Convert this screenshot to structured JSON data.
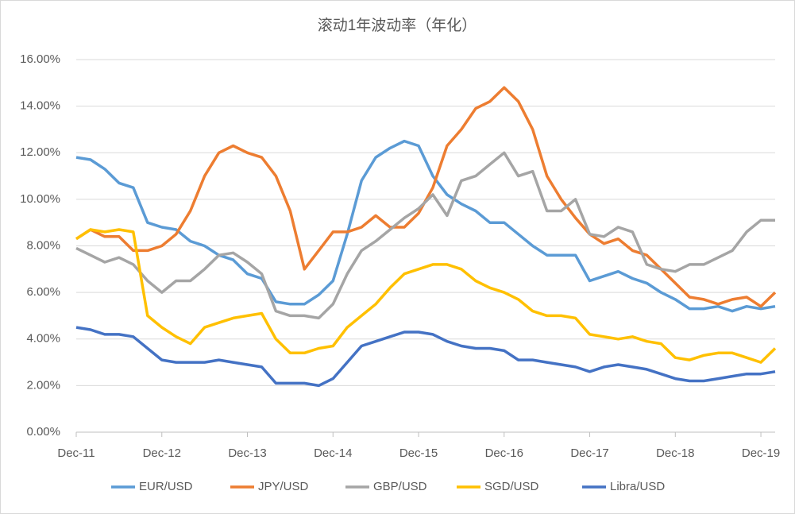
{
  "chart_data": {
    "type": "line",
    "title": "滚动1年波动率（年化）",
    "categories": [
      "Dec-11",
      null,
      null,
      null,
      null,
      null,
      "Dec-12",
      null,
      null,
      null,
      null,
      null,
      "Dec-13",
      null,
      null,
      null,
      null,
      null,
      "Dec-14",
      null,
      null,
      null,
      null,
      null,
      "Dec-15",
      null,
      null,
      null,
      null,
      null,
      "Dec-16",
      null,
      null,
      null,
      null,
      null,
      "Dec-17",
      null,
      null,
      null,
      null,
      null,
      "Dec-18",
      null,
      null,
      null,
      null,
      null,
      "Dec-19",
      null
    ],
    "ylim": [
      0,
      16
    ],
    "yticks": [
      {
        "value": 0,
        "label": "0.00%"
      },
      {
        "value": 2,
        "label": "2.00%"
      },
      {
        "value": 4,
        "label": "4.00%"
      },
      {
        "value": 6,
        "label": "6.00%"
      },
      {
        "value": 8,
        "label": "8.00%"
      },
      {
        "value": 10,
        "label": "10.00%"
      },
      {
        "value": 12,
        "label": "12.00%"
      },
      {
        "value": 14,
        "label": "14.00%"
      },
      {
        "value": 16,
        "label": "16.00%"
      }
    ],
    "grid": true,
    "legend": "bottom",
    "series": [
      {
        "name": "EUR/USD",
        "color": "#5b9bd5",
        "values": [
          11.8,
          11.7,
          11.3,
          10.7,
          10.5,
          9.0,
          8.8,
          8.7,
          8.2,
          8.0,
          7.6,
          7.4,
          6.8,
          6.6,
          5.6,
          5.5,
          5.5,
          5.9,
          6.5,
          8.5,
          10.8,
          11.8,
          12.2,
          12.5,
          12.3,
          11.0,
          10.2,
          9.8,
          9.5,
          9.0,
          9.0,
          8.5,
          8.0,
          7.6,
          7.6,
          7.6,
          6.5,
          6.7,
          6.9,
          6.6,
          6.4,
          6.0,
          5.7,
          5.3,
          5.3,
          5.4,
          5.2,
          5.4,
          5.3,
          5.4
        ]
      },
      {
        "name": "JPY/USD",
        "color": "#ed7d31",
        "values": [
          8.3,
          8.7,
          8.4,
          8.4,
          7.8,
          7.8,
          8.0,
          8.5,
          9.5,
          11.0,
          12.0,
          12.3,
          12.0,
          11.8,
          11.0,
          9.5,
          7.0,
          7.8,
          8.6,
          8.6,
          8.8,
          9.3,
          8.8,
          8.8,
          9.4,
          10.5,
          12.3,
          13.0,
          13.9,
          14.2,
          14.8,
          14.2,
          13.0,
          11.0,
          10.0,
          9.2,
          8.5,
          8.1,
          8.3,
          7.8,
          7.6,
          7.0,
          6.4,
          5.8,
          5.7,
          5.5,
          5.7,
          5.8,
          5.4,
          6.0
        ]
      },
      {
        "name": "GBP/USD",
        "color": "#a5a5a5",
        "values": [
          7.9,
          7.6,
          7.3,
          7.5,
          7.2,
          6.5,
          6.0,
          6.5,
          6.5,
          7.0,
          7.6,
          7.7,
          7.3,
          6.8,
          5.2,
          5.0,
          5.0,
          4.9,
          5.5,
          6.8,
          7.8,
          8.2,
          8.7,
          9.2,
          9.6,
          10.2,
          9.3,
          10.8,
          11.0,
          11.5,
          12.0,
          11.0,
          11.2,
          9.5,
          9.5,
          10.0,
          8.5,
          8.4,
          8.8,
          8.6,
          7.2,
          7.0,
          6.9,
          7.2,
          7.2,
          7.5,
          7.8,
          8.6,
          9.1,
          9.1
        ]
      },
      {
        "name": "SGD/USD",
        "color": "#ffc000",
        "values": [
          8.3,
          8.7,
          8.6,
          8.7,
          8.6,
          5.0,
          4.5,
          4.1,
          3.8,
          4.5,
          4.7,
          4.9,
          5.0,
          5.1,
          4.0,
          3.4,
          3.4,
          3.6,
          3.7,
          4.5,
          5.0,
          5.5,
          6.2,
          6.8,
          7.0,
          7.2,
          7.2,
          7.0,
          6.5,
          6.2,
          6.0,
          5.7,
          5.2,
          5.0,
          5.0,
          4.9,
          4.2,
          4.1,
          4.0,
          4.1,
          3.9,
          3.8,
          3.2,
          3.1,
          3.3,
          3.4,
          3.4,
          3.2,
          3.0,
          3.6
        ]
      },
      {
        "name": "Libra/USD",
        "color": "#4472c4",
        "values": [
          4.5,
          4.4,
          4.2,
          4.2,
          4.1,
          3.6,
          3.1,
          3.0,
          3.0,
          3.0,
          3.1,
          3.0,
          2.9,
          2.8,
          2.1,
          2.1,
          2.1,
          2.0,
          2.3,
          3.0,
          3.7,
          3.9,
          4.1,
          4.3,
          4.3,
          4.2,
          3.9,
          3.7,
          3.6,
          3.6,
          3.5,
          3.1,
          3.1,
          3.0,
          2.9,
          2.8,
          2.6,
          2.8,
          2.9,
          2.8,
          2.7,
          2.5,
          2.3,
          2.2,
          2.2,
          2.3,
          2.4,
          2.5,
          2.5,
          2.6
        ]
      }
    ]
  }
}
